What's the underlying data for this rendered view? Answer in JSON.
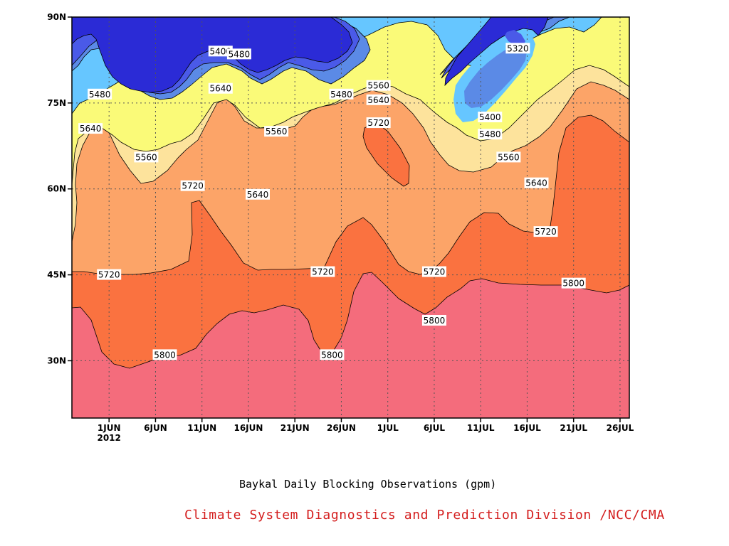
{
  "chart_data": {
    "type": "contour",
    "caption": "Baykal Daily Blocking Observations (gpm)",
    "credit": "Climate System Diagnostics and Prediction Division /NCC/CMA",
    "x_axis": {
      "range": [
        "2012-05-28",
        "2012-07-27"
      ],
      "ticks": [
        {
          "date": "2012-06-01",
          "label": "1JUN",
          "sublabel": "2012"
        },
        {
          "date": "2012-06-06",
          "label": "6JUN"
        },
        {
          "date": "2012-06-11",
          "label": "11JUN"
        },
        {
          "date": "2012-06-16",
          "label": "16JUN"
        },
        {
          "date": "2012-06-21",
          "label": "21JUN"
        },
        {
          "date": "2012-06-26",
          "label": "26JUN"
        },
        {
          "date": "2012-07-01",
          "label": "1JUL"
        },
        {
          "date": "2012-07-06",
          "label": "6JUL"
        },
        {
          "date": "2012-07-11",
          "label": "11JUL"
        },
        {
          "date": "2012-07-16",
          "label": "16JUL"
        },
        {
          "date": "2012-07-21",
          "label": "21JUL"
        },
        {
          "date": "2012-07-26",
          "label": "26JUL"
        }
      ]
    },
    "y_axis": {
      "range_deg_lat": [
        20,
        90
      ],
      "ticks": [
        {
          "value": 30,
          "label": "30N"
        },
        {
          "value": 45,
          "label": "45N"
        },
        {
          "value": 60,
          "label": "60N"
        },
        {
          "value": 75,
          "label": "75N"
        },
        {
          "value": 90,
          "label": "90N"
        }
      ]
    },
    "grid": "dotted",
    "contour_levels": [
      5320,
      5400,
      5480,
      5560,
      5640,
      5720,
      5800
    ],
    "fill_colors": {
      "lt5320": "#2b2bd6",
      "5320-5400": "#4a5ae8",
      "5400-5480": "#5b8ae6",
      "5480-5560": "#66c6ff",
      "5560-5640": "#fafa78",
      "5640-5720": "#fde39c",
      "5720-5800": "#fca468",
      "5800-5880": "#fa7240",
      "gt5880": "#f46c7c"
    },
    "contour_labels": [
      {
        "text": "5400",
        "date": "2012-06-13",
        "lat": 84.0
      },
      {
        "text": "5480",
        "date": "2012-06-15",
        "lat": 83.5
      },
      {
        "text": "5320",
        "date": "2012-07-15",
        "lat": 84.5
      },
      {
        "text": "5480",
        "date": "2012-05-31",
        "lat": 76.5
      },
      {
        "text": "5640",
        "date": "2012-06-13",
        "lat": 77.5
      },
      {
        "text": "5560",
        "date": "2012-06-30",
        "lat": 78.0
      },
      {
        "text": "5480",
        "date": "2012-06-26",
        "lat": 76.5
      },
      {
        "text": "5640",
        "date": "2012-06-30",
        "lat": 75.5
      },
      {
        "text": "5720",
        "date": "2012-06-30",
        "lat": 71.5
      },
      {
        "text": "5400",
        "date": "2012-07-12",
        "lat": 72.5
      },
      {
        "text": "5640",
        "date": "2012-05-30",
        "lat": 70.5
      },
      {
        "text": "5560",
        "date": "2012-06-19",
        "lat": 70.0
      },
      {
        "text": "5480",
        "date": "2012-07-12",
        "lat": 69.5
      },
      {
        "text": "5560",
        "date": "2012-06-05",
        "lat": 65.5
      },
      {
        "text": "5560",
        "date": "2012-07-14",
        "lat": 65.5
      },
      {
        "text": "5720",
        "date": "2012-06-10",
        "lat": 60.5
      },
      {
        "text": "5640",
        "date": "2012-06-17",
        "lat": 59.0
      },
      {
        "text": "5640",
        "date": "2012-07-17",
        "lat": 61.0
      },
      {
        "text": "5720",
        "date": "2012-07-18",
        "lat": 52.5
      },
      {
        "text": "5720",
        "date": "2012-06-01",
        "lat": 45.0
      },
      {
        "text": "5720",
        "date": "2012-06-24",
        "lat": 45.5
      },
      {
        "text": "5720",
        "date": "2012-07-06",
        "lat": 45.5
      },
      {
        "text": "5800",
        "date": "2012-07-21",
        "lat": 43.5
      },
      {
        "text": "5800",
        "date": "2012-07-06",
        "lat": 37.0
      },
      {
        "text": "5800",
        "date": "2012-06-07",
        "lat": 31.0
      },
      {
        "text": "5800",
        "date": "2012-06-25",
        "lat": 31.0
      }
    ]
  }
}
